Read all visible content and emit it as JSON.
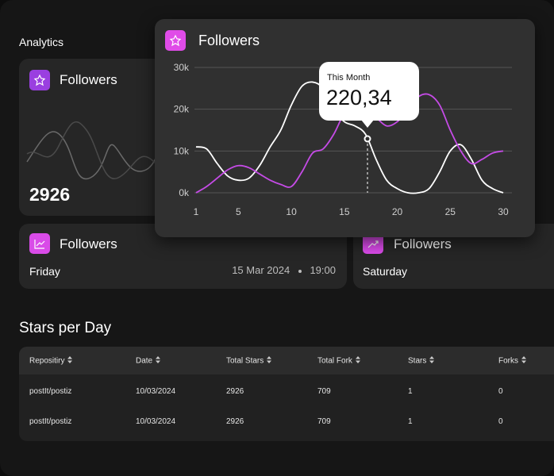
{
  "header": {
    "title": "Analytics"
  },
  "cards": [
    {
      "title": "Followers",
      "value": "2926"
    },
    {
      "title": "Followers",
      "day": "Friday",
      "date": "15 Mar 2024",
      "time": "19:00"
    },
    {
      "title": "Followers",
      "day": "Saturday"
    }
  ],
  "popup": {
    "title": "Followers",
    "tooltip": {
      "label": "This Month",
      "value": "220,34"
    }
  },
  "chart_data": {
    "type": "line",
    "x": [
      1,
      2,
      3,
      4,
      5,
      6,
      7,
      8,
      9,
      10,
      11,
      12,
      13,
      14,
      15,
      16,
      17,
      18,
      19,
      20,
      21,
      22,
      23,
      24,
      25,
      26,
      27,
      28,
      29,
      30
    ],
    "xlim": [
      1,
      30
    ],
    "xticks": [
      1,
      5,
      10,
      15,
      20,
      25,
      30
    ],
    "ylim": [
      0,
      30000
    ],
    "yticks": [
      {
        "value": 0,
        "label": "0k"
      },
      {
        "value": 10000,
        "label": "10k"
      },
      {
        "value": 20000,
        "label": "20k"
      },
      {
        "value": 30000,
        "label": "30k"
      }
    ],
    "grid": true,
    "series": [
      {
        "color": "#ffffff",
        "values": [
          11000,
          10500,
          7000,
          4000,
          3000,
          3500,
          6500,
          11000,
          15000,
          21000,
          25500,
          26500,
          25000,
          20000,
          17000,
          16000,
          14000,
          8000,
          3000,
          1000,
          0,
          0,
          1000,
          5000,
          10000,
          11500,
          8000,
          3000,
          1000,
          0
        ]
      },
      {
        "color": "#c54be6",
        "values": [
          0,
          1500,
          3500,
          5500,
          6500,
          6000,
          4500,
          3000,
          2000,
          1500,
          5000,
          9500,
          10500,
          14000,
          19000,
          21000,
          20000,
          18000,
          16000,
          17000,
          20000,
          23000,
          23500,
          21000,
          15000,
          10000,
          7000,
          8000,
          9500,
          10000
        ]
      }
    ]
  },
  "table": {
    "title": "Stars per Day",
    "columns": [
      "Repositiry",
      "Date",
      "Total Stars",
      "Total Fork",
      "Stars",
      "Forks"
    ],
    "rows": [
      [
        "postIt/postiz",
        "10/03/2024",
        "2926",
        "709",
        "1",
        "0"
      ],
      [
        "postIt/postiz",
        "10/03/2024",
        "2926",
        "709",
        "1",
        "0"
      ]
    ]
  }
}
